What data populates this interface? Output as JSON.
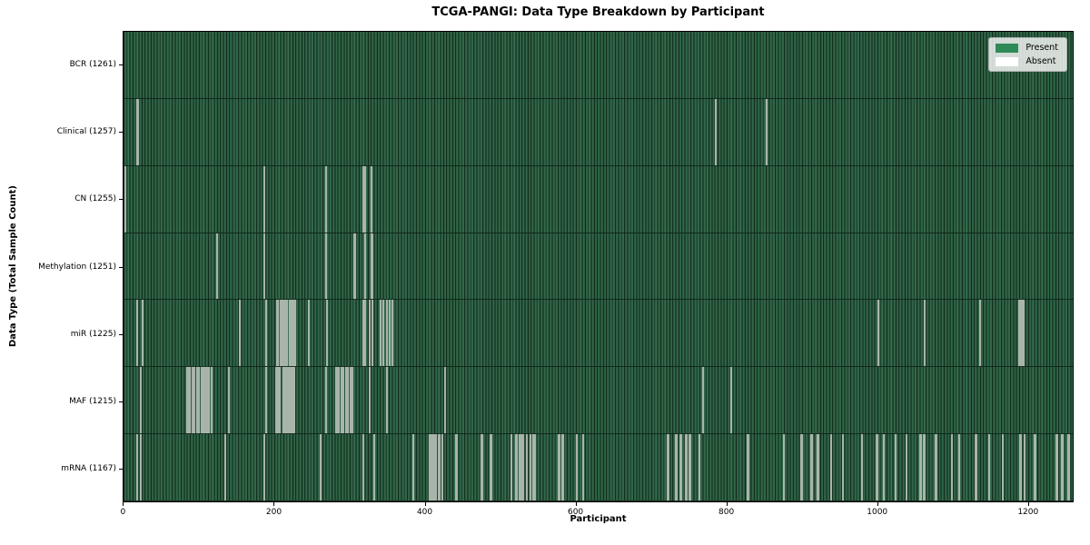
{
  "chart_data": {
    "type": "heatmap",
    "title": "TCGA-PANGI: Data Type Breakdown by Participant",
    "xlabel": "Participant",
    "ylabel": "Data Type (Total Sample Count)",
    "n_participants": 1261,
    "x_axis_range": [
      0,
      1261
    ],
    "x_ticks": [
      0,
      200,
      400,
      600,
      800,
      1000,
      1200
    ],
    "grid": false,
    "legend": {
      "position": "upper right",
      "entries": [
        {
          "label": "Present",
          "color": "#2e8b57"
        },
        {
          "label": "Absent",
          "color": "#ffffff"
        }
      ]
    },
    "colors": {
      "present_fill": "#2e8b57",
      "bar_edge": "#122e1c",
      "absent_rendered": "#a9b5ab",
      "figure_background": "#ffffff"
    },
    "rows": [
      {
        "label": "BCR (1261)",
        "data_type": "BCR",
        "total_samples": 1261,
        "absent_participants": []
      },
      {
        "label": "Clinical (1257)",
        "data_type": "Clinical",
        "total_samples": 1257,
        "absent_participants": [
          18,
          19,
          786,
          854
        ]
      },
      {
        "label": "CN (1255)",
        "data_type": "CN",
        "total_samples": 1255,
        "absent_participants": [
          2,
          187,
          268,
          318,
          320,
          329
        ]
      },
      {
        "label": "Methylation (1251)",
        "data_type": "Methylation",
        "total_samples": 1251,
        "absent_participants": [
          124,
          187,
          268,
          269,
          306,
          307,
          320,
          321,
          329,
          330
        ]
      },
      {
        "label": "miR (1225)",
        "data_type": "miR",
        "total_samples": 1225,
        "absent_participants": [
          18,
          25,
          154,
          189,
          204,
          205,
          208,
          209,
          212,
          213,
          216,
          217,
          220,
          221,
          224,
          225,
          228,
          246,
          270,
          318,
          320,
          327,
          330,
          341,
          345,
          349,
          353,
          357,
          1002,
          1064,
          1137,
          1189,
          1190,
          1192,
          1193,
          1195
        ]
      },
      {
        "label": "MAF (1215)",
        "data_type": "MAF",
        "total_samples": 1215,
        "absent_participants": [
          23,
          84,
          85,
          88,
          91,
          94,
          97,
          100,
          103,
          104,
          106,
          107,
          109,
          110,
          111,
          113,
          116,
          140,
          189,
          202,
          203,
          205,
          207,
          212,
          214,
          216,
          218,
          219,
          221,
          224,
          226,
          268,
          282,
          283,
          286,
          289,
          292,
          295,
          298,
          301,
          304,
          327,
          349,
          427,
          769,
          807
        ]
      },
      {
        "label": "mRNA (1167)",
        "data_type": "mRNA",
        "total_samples": 1167,
        "absent_participants": [
          18,
          22,
          135,
          186,
          261,
          318,
          333,
          385,
          406,
          407,
          410,
          411,
          414,
          415,
          418,
          419,
          423,
          441,
          442,
          475,
          476,
          487,
          488,
          515,
          521,
          522,
          526,
          527,
          528,
          529,
          530,
          531,
          535,
          540,
          544,
          546,
          578,
          579,
          582,
          583,
          602,
          610,
          722,
          723,
          733,
          734,
          739,
          740,
          747,
          748,
          751,
          752,
          765,
          829,
          830,
          877,
          900,
          901,
          913,
          914,
          922,
          923,
          940,
          955,
          980,
          981,
          1000,
          1001,
          1010,
          1025,
          1040,
          1058,
          1059,
          1063,
          1064,
          1078,
          1079,
          1100,
          1110,
          1131,
          1132,
          1150,
          1167,
          1191,
          1192,
          1196,
          1210,
          1211,
          1239,
          1240,
          1246,
          1247,
          1255,
          1256
        ]
      }
    ]
  }
}
